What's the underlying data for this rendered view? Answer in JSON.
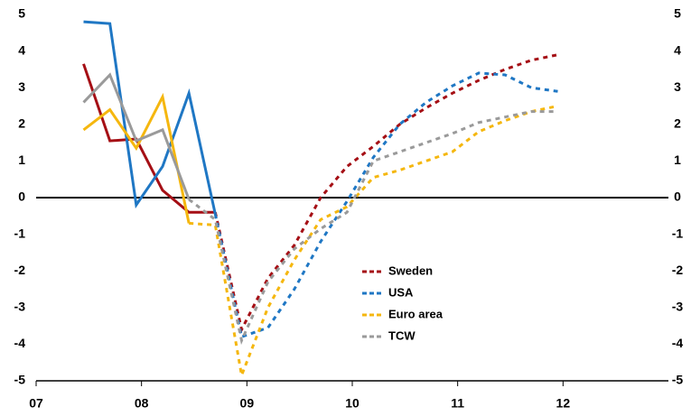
{
  "chart_data": {
    "type": "line",
    "x": [
      2007.45,
      2007.7,
      2007.95,
      2008.2,
      2008.45,
      2008.7,
      2008.95,
      2009.2,
      2009.45,
      2009.7,
      2009.95,
      2010.2,
      2010.45,
      2010.7,
      2010.95,
      2011.2,
      2011.45,
      2011.7,
      2011.95
    ],
    "series": [
      {
        "name": "Sweden",
        "color": "#a50f15",
        "dash_from": 2008.7,
        "values": [
          3.65,
          1.55,
          1.6,
          0.2,
          -0.4,
          -0.4,
          -3.6,
          -2.2,
          -1.3,
          0.0,
          0.85,
          1.4,
          2.0,
          2.45,
          2.85,
          3.2,
          3.5,
          3.75,
          3.9
        ]
      },
      {
        "name": "USA",
        "color": "#1f77c4",
        "dash_from": 2008.7,
        "values": [
          4.8,
          4.75,
          -0.2,
          0.85,
          2.85,
          -0.45,
          -3.8,
          -3.55,
          -2.5,
          -1.2,
          -0.1,
          1.1,
          2.0,
          2.6,
          3.05,
          3.4,
          3.35,
          3.0,
          2.9
        ]
      },
      {
        "name": "Euro area",
        "color": "#f5b70f",
        "dash_from": 2008.45,
        "values": [
          1.85,
          2.4,
          1.35,
          2.75,
          -0.7,
          -0.75,
          -4.85,
          -3.0,
          -1.7,
          -0.6,
          -0.25,
          0.55,
          0.75,
          1.0,
          1.25,
          1.8,
          2.1,
          2.35,
          2.5
        ]
      },
      {
        "name": "TCW",
        "color": "#9a9a9a",
        "dash_from": 2008.45,
        "values": [
          2.6,
          3.35,
          1.55,
          1.85,
          -0.05,
          -0.6,
          -3.9,
          -2.3,
          -1.4,
          -0.85,
          -0.4,
          1.0,
          1.25,
          1.5,
          1.75,
          2.05,
          2.2,
          2.35,
          2.35
        ]
      }
    ],
    "xlim": [
      2007,
      2013
    ],
    "xticks": [
      {
        "value": 2007,
        "label": "07"
      },
      {
        "value": 2008,
        "label": "08"
      },
      {
        "value": 2009,
        "label": "09"
      },
      {
        "value": 2010,
        "label": "10"
      },
      {
        "value": 2011,
        "label": "11"
      },
      {
        "value": 2012,
        "label": "12"
      }
    ],
    "ylim": [
      -5,
      5
    ],
    "yticks": [
      -5,
      -4,
      -3,
      -2,
      -1,
      0,
      1,
      2,
      3,
      4,
      5
    ],
    "legend_position": "center"
  }
}
